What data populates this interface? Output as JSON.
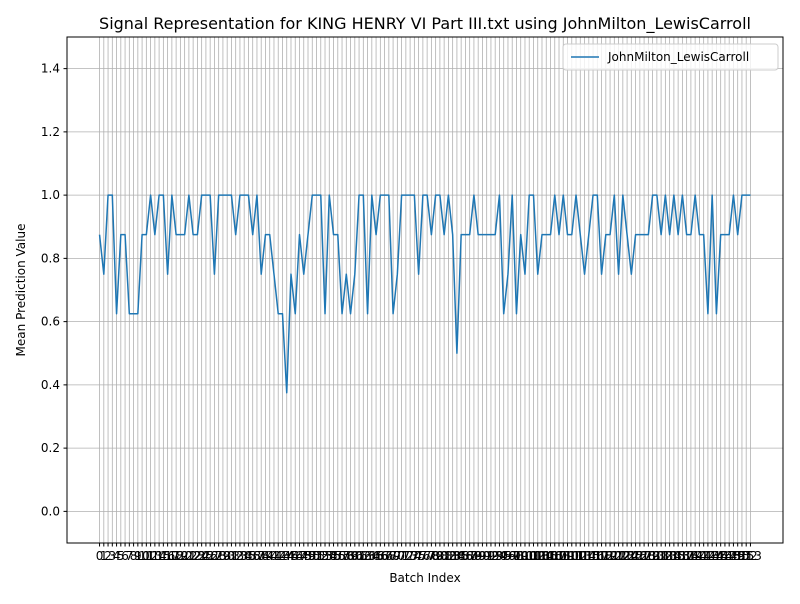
{
  "chart_data": {
    "type": "line",
    "title": "Signal Representation for KING HENRY VI Part III.txt using JohnMilton_LewisCarroll",
    "xlabel": "Batch Index",
    "ylabel": "Mean Prediction Value",
    "x": [
      0,
      1,
      2,
      3,
      4,
      5,
      6,
      7,
      8,
      9,
      10,
      11,
      12,
      13,
      14,
      15,
      16,
      17,
      18,
      19,
      20,
      21,
      22,
      23,
      24,
      25,
      26,
      27,
      28,
      29,
      30,
      31,
      32,
      33,
      34,
      35,
      36,
      37,
      38,
      39,
      40,
      41,
      42,
      43,
      44,
      45,
      46,
      47,
      48,
      49,
      50,
      51,
      52,
      53,
      54,
      55,
      56,
      57,
      58,
      59,
      60,
      61,
      62,
      63,
      64,
      65,
      66,
      67,
      68,
      69,
      70,
      71,
      72,
      73,
      74,
      75,
      76,
      77,
      78,
      79,
      80,
      81,
      82,
      83,
      84,
      85,
      86,
      87,
      88,
      89,
      90,
      91,
      92,
      93,
      94,
      95,
      96,
      97,
      98,
      99,
      100,
      101,
      102,
      103,
      104,
      105,
      106,
      107,
      108,
      109,
      110,
      111,
      112,
      113,
      114,
      115,
      116,
      117,
      118,
      119,
      120,
      121,
      122,
      123,
      124,
      125,
      126,
      127,
      128,
      129,
      130,
      131,
      132,
      133,
      134,
      135,
      136,
      137,
      138,
      139,
      140,
      141,
      142,
      143,
      144,
      145,
      146,
      147,
      148,
      149,
      150,
      151,
      152,
      153
    ],
    "series": [
      {
        "name": "JohnMilton_LewisCarroll",
        "color": "#1f77b4",
        "values": [
          0.875,
          0.75,
          1,
          1,
          0.625,
          0.875,
          0.875,
          0.625,
          0.625,
          0.625,
          0.875,
          0.875,
          1,
          0.875,
          1,
          1,
          0.75,
          1,
          0.875,
          0.875,
          0.875,
          1,
          0.875,
          0.875,
          1,
          1,
          1,
          0.75,
          1,
          1,
          1,
          1,
          0.875,
          1,
          1,
          1,
          0.875,
          1,
          0.75,
          0.875,
          0.875,
          0.75,
          0.625,
          0.625,
          0.375,
          0.75,
          0.625,
          0.875,
          0.75,
          0.875,
          1,
          1,
          1,
          0.625,
          1,
          0.875,
          0.875,
          0.625,
          0.75,
          0.625,
          0.75,
          1,
          1,
          0.625,
          1,
          0.875,
          1,
          1,
          1,
          0.625,
          0.75,
          1,
          1,
          1,
          1,
          0.75,
          1,
          1,
          0.875,
          1,
          1,
          0.875,
          1,
          0.875,
          0.5,
          0.875,
          0.875,
          0.875,
          1,
          0.875,
          0.875,
          0.875,
          0.875,
          0.875,
          1,
          0.625,
          0.75,
          1,
          0.625,
          0.875,
          0.75,
          1,
          1,
          0.75,
          0.875,
          0.875,
          0.875,
          1,
          0.875,
          1,
          0.875,
          0.875,
          1,
          0.875,
          0.75,
          0.875,
          1,
          1,
          0.75,
          0.875,
          0.875,
          1,
          0.75,
          1,
          0.875,
          0.75,
          0.875,
          0.875,
          0.875,
          0.875,
          1,
          1,
          0.875,
          1,
          0.875,
          1,
          0.875,
          1,
          0.875,
          0.875,
          1,
          0.875,
          0.875,
          0.625,
          1,
          0.625,
          0.875,
          0.875,
          0.875,
          1,
          0.875,
          1,
          1,
          1
        ]
      }
    ],
    "xlim": [
      -7.65,
      160.65
    ],
    "xticks": [
      0,
      1,
      2,
      3,
      4,
      5,
      6,
      7,
      8,
      9,
      10,
      11,
      12,
      13,
      14,
      15,
      16,
      17,
      18,
      19,
      20,
      21,
      22,
      23,
      24,
      25,
      26,
      27,
      28,
      29,
      30,
      31,
      32,
      33,
      34,
      35,
      36,
      37,
      38,
      39,
      40,
      41,
      42,
      43,
      44,
      45,
      46,
      47,
      48,
      49,
      50,
      51,
      52,
      53,
      54,
      55,
      56,
      57,
      58,
      59,
      60,
      61,
      62,
      63,
      64,
      65,
      66,
      67,
      68,
      69,
      70,
      71,
      72,
      73,
      74,
      75,
      76,
      77,
      78,
      79,
      80,
      81,
      82,
      83,
      84,
      85,
      86,
      87,
      88,
      89,
      90,
      91,
      92,
      93,
      94,
      95,
      96,
      97,
      98,
      99,
      100,
      101,
      102,
      103,
      104,
      105,
      106,
      107,
      108,
      109,
      110,
      111,
      112,
      113,
      114,
      115,
      116,
      117,
      118,
      119,
      120,
      121,
      122,
      123,
      124,
      125,
      126,
      127,
      128,
      129,
      130,
      131,
      132,
      133,
      134,
      135,
      136,
      137,
      138,
      139,
      140,
      141,
      142,
      143,
      144,
      145,
      146,
      147,
      148,
      149,
      150,
      151,
      152,
      153
    ],
    "ylim": [
      -0.1,
      1.5
    ],
    "yticks": [
      {
        "value": 0,
        "label": "0.0"
      },
      0.2,
      0.4,
      0.6,
      0.8,
      {
        "value": 1,
        "label": "1.0"
      },
      1.2,
      1.4
    ],
    "grid": true,
    "legend": "upper right"
  }
}
